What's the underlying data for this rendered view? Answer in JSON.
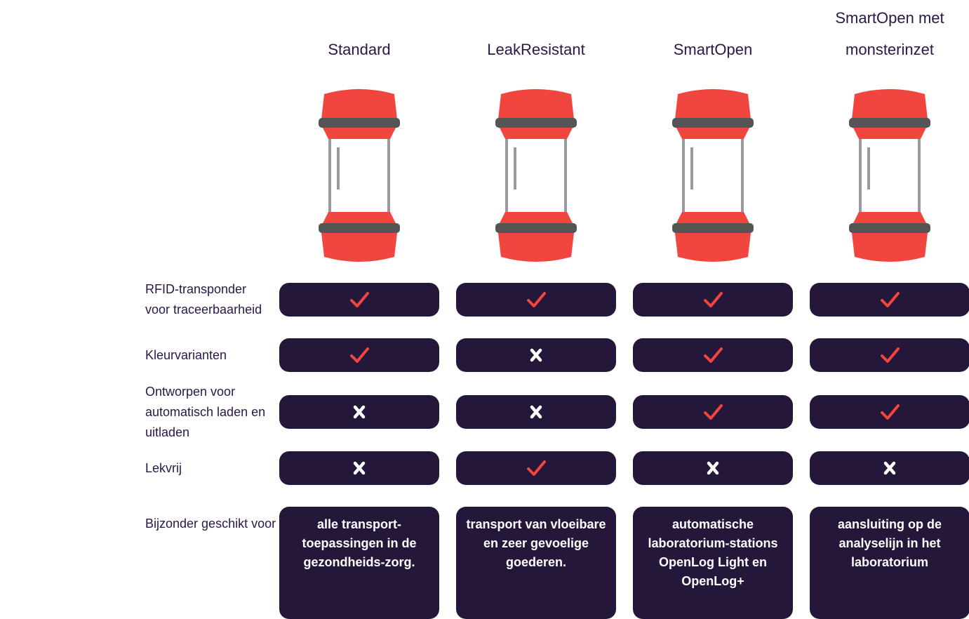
{
  "columns": [
    "Standard",
    "LeakResistant",
    "SmartOpen",
    "SmartOpen met monsterinzet"
  ],
  "rows": [
    {
      "label": "RFID-transponder voor traceerbaarheid",
      "values": [
        true,
        true,
        true,
        true
      ]
    },
    {
      "label": "Kleurvarianten",
      "values": [
        true,
        false,
        true,
        true
      ]
    },
    {
      "label": "Ontworpen voor automatisch laden en uitladen",
      "values": [
        false,
        false,
        true,
        true
      ]
    },
    {
      "label": "Lekvrij",
      "values": [
        false,
        true,
        false,
        false
      ]
    }
  ],
  "suitability": {
    "label": "Bijzonder geschikt voor",
    "values": [
      "alle transport-toepassingen in de gezondheids-zorg.",
      "transport van vloeibare en zeer gevoelige goederen.",
      "automatische laboratorium-stations OpenLog Light en OpenLog+",
      "aansluiting op de analyselijn in het laboratorium"
    ]
  }
}
